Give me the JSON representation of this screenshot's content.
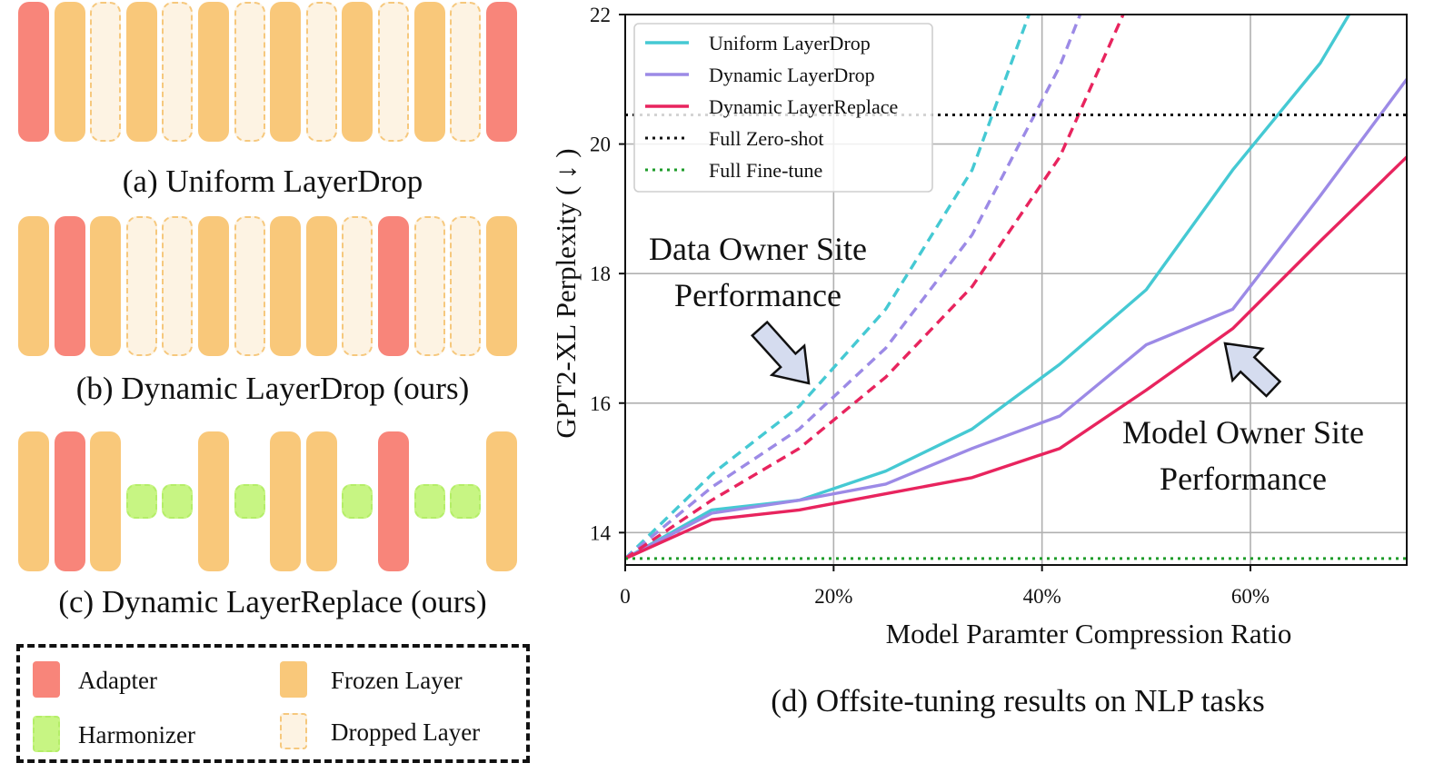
{
  "panels": {
    "a": {
      "caption": "(a) Uniform LayerDrop",
      "layers": [
        "adapter",
        "frozen",
        "dropped",
        "frozen",
        "dropped",
        "frozen",
        "dropped",
        "frozen",
        "dropped",
        "frozen",
        "dropped",
        "frozen",
        "dropped",
        "adapter"
      ]
    },
    "b": {
      "caption": "(b) Dynamic LayerDrop (ours)",
      "layers": [
        "frozen",
        "adapter",
        "frozen",
        "dropped",
        "dropped",
        "frozen",
        "dropped",
        "frozen",
        "frozen",
        "dropped",
        "adapter",
        "dropped",
        "dropped",
        "frozen"
      ]
    },
    "c": {
      "caption": "(c) Dynamic LayerReplace (ours)",
      "layers": [
        "frozen",
        "adapter",
        "frozen",
        "harmonizer",
        "harmonizer",
        "frozen",
        "harmonizer",
        "frozen",
        "frozen",
        "harmonizer",
        "adapter",
        "harmonizer",
        "harmonizer",
        "frozen"
      ]
    }
  },
  "legend": {
    "adapter": "Adapter",
    "harmonizer": "Harmonizer",
    "frozen": "Frozen Layer",
    "dropped": "Dropped Layer"
  },
  "colors": {
    "adapter": "#f8857a",
    "frozen": "#f9c87a",
    "dropped_fill": "#fdf3e3",
    "dropped_border": "#f6c87d",
    "harmonizer": "#c7f583",
    "uniform_layerdrop": "#45c9d3",
    "dynamic_layerdrop": "#9c8ae6",
    "dynamic_layerreplace": "#e8245e",
    "full_zero_shot": "#111111",
    "full_fine_tune": "#1e9c2a"
  },
  "chart_caption": "(d) Offsite-tuning results on NLP tasks",
  "chart_data": {
    "type": "line",
    "xlabel": "Model Paramter Compression Ratio",
    "ylabel": "GPT2-XL Perplexity ( ↓ )",
    "xlim": [
      0,
      75
    ],
    "ylim": [
      13.5,
      22
    ],
    "xticks": [
      0,
      20,
      40,
      60
    ],
    "xtick_labels": [
      "0",
      "20%",
      "40%",
      "60%"
    ],
    "yticks": [
      14,
      16,
      18,
      20,
      22
    ],
    "ytick_labels": [
      "14",
      "16",
      "18",
      "20",
      "22"
    ],
    "grid": true,
    "legend_position": "top-left",
    "series": [
      {
        "name": "Uniform LayerDrop",
        "style": "solid",
        "x": [
          0,
          8.3,
          16.7,
          25,
          33.3,
          41.7,
          50,
          58.3,
          66.7,
          75
        ],
        "y": [
          13.6,
          14.35,
          14.5,
          14.95,
          15.6,
          16.6,
          17.75,
          19.6,
          21.25,
          23.5
        ]
      },
      {
        "name": "Dynamic LayerDrop",
        "style": "solid",
        "x": [
          0,
          8.3,
          16.7,
          25,
          33.3,
          41.7,
          50,
          58.3,
          66.7,
          75
        ],
        "y": [
          13.6,
          14.3,
          14.5,
          14.75,
          15.3,
          15.8,
          16.9,
          17.45,
          19.2,
          21.0
        ]
      },
      {
        "name": "Dynamic LayerReplace",
        "style": "solid",
        "x": [
          0,
          8.3,
          16.7,
          25,
          33.3,
          41.7,
          50,
          58.3,
          66.7,
          75
        ],
        "y": [
          13.6,
          14.2,
          14.35,
          14.6,
          14.85,
          15.3,
          16.2,
          17.15,
          18.5,
          19.8
        ]
      },
      {
        "name": "Uniform LayerDrop",
        "style": "dashed",
        "in_legend": false,
        "x": [
          0,
          8.3,
          16.7,
          25,
          33.3,
          41.7
        ],
        "y": [
          13.6,
          14.9,
          15.95,
          17.45,
          19.6,
          23.3
        ]
      },
      {
        "name": "Dynamic LayerDrop",
        "style": "dashed",
        "in_legend": false,
        "x": [
          0,
          8.3,
          16.7,
          25,
          33.3,
          41.7,
          50
        ],
        "y": [
          13.6,
          14.7,
          15.6,
          16.85,
          18.6,
          21.2,
          24.6
        ]
      },
      {
        "name": "Dynamic LayerReplace",
        "style": "dashed",
        "in_legend": false,
        "x": [
          0,
          8.3,
          16.7,
          25,
          33.3,
          41.7,
          50
        ],
        "y": [
          13.6,
          14.5,
          15.3,
          16.4,
          17.8,
          19.8,
          22.8
        ]
      },
      {
        "name": "Full Zero-shot",
        "style": "dotted",
        "x": [
          0,
          75
        ],
        "y": [
          20.45,
          20.45
        ]
      },
      {
        "name": "Full Fine-tune",
        "style": "dotted",
        "x": [
          0,
          75
        ],
        "y": [
          13.6,
          13.6
        ]
      }
    ],
    "annotations": [
      {
        "lines": [
          "Data Owner Site",
          "Performance"
        ]
      },
      {
        "lines": [
          "Model Owner Site",
          "Performance"
        ]
      }
    ]
  }
}
